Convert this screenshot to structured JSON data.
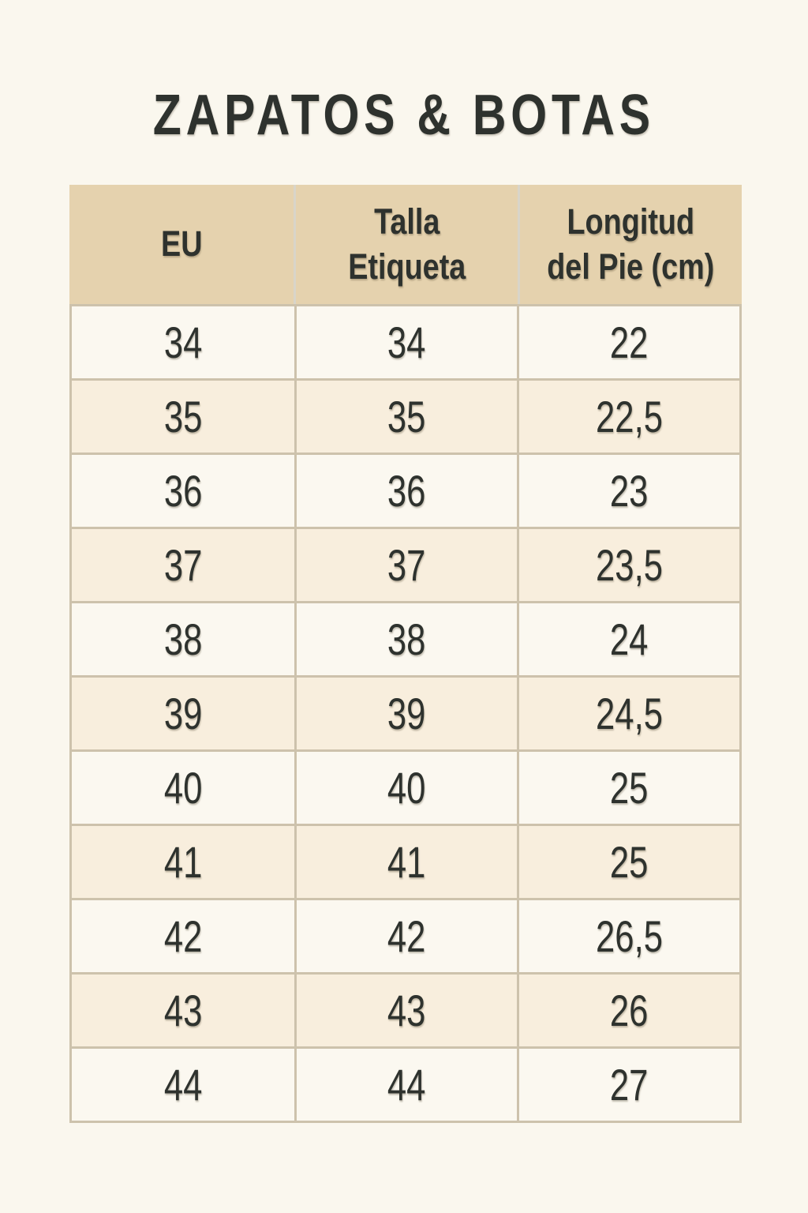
{
  "title": "ZAPATOS & BOTAS",
  "table": {
    "columns": [
      {
        "id": "eu",
        "label": "EU"
      },
      {
        "id": "talla",
        "label": "Talla\nEtiqueta"
      },
      {
        "id": "longitud",
        "label": "Longitud\ndel Pie (cm)"
      }
    ],
    "rows": [
      [
        "34",
        "34",
        "22"
      ],
      [
        "35",
        "35",
        "22,5"
      ],
      [
        "36",
        "36",
        "23"
      ],
      [
        "37",
        "37",
        "23,5"
      ],
      [
        "38",
        "38",
        "24"
      ],
      [
        "39",
        "39",
        "24,5"
      ],
      [
        "40",
        "40",
        "25"
      ],
      [
        "41",
        "41",
        "25"
      ],
      [
        "42",
        "42",
        "26,5"
      ],
      [
        "43",
        "43",
        "26"
      ],
      [
        "44",
        "44",
        "27"
      ]
    ]
  },
  "chart_data": {
    "type": "table",
    "title": "ZAPATOS & BOTAS",
    "columns": [
      "EU",
      "Talla Etiqueta",
      "Longitud del Pie (cm)"
    ],
    "rows": [
      [
        "34",
        "34",
        "22"
      ],
      [
        "35",
        "35",
        "22,5"
      ],
      [
        "36",
        "36",
        "23"
      ],
      [
        "37",
        "37",
        "23,5"
      ],
      [
        "38",
        "38",
        "24"
      ],
      [
        "39",
        "39",
        "24,5"
      ],
      [
        "40",
        "40",
        "25"
      ],
      [
        "41",
        "41",
        "25"
      ],
      [
        "42",
        "42",
        "26,5"
      ],
      [
        "43",
        "43",
        "26"
      ],
      [
        "44",
        "44",
        "27"
      ]
    ],
    "layout_hints": {
      "header_background": true,
      "alternating_rows": true,
      "decimal_separator": ","
    }
  },
  "colors": {
    "page_bg": "#faf7ee",
    "header_bg": "#e5d2ae",
    "row_light": "#fbf8f0",
    "row_peach": "#f8eedd",
    "border": "#cdc2ac",
    "header_divider": "#d9d5c9",
    "ink": "#2e322e"
  }
}
